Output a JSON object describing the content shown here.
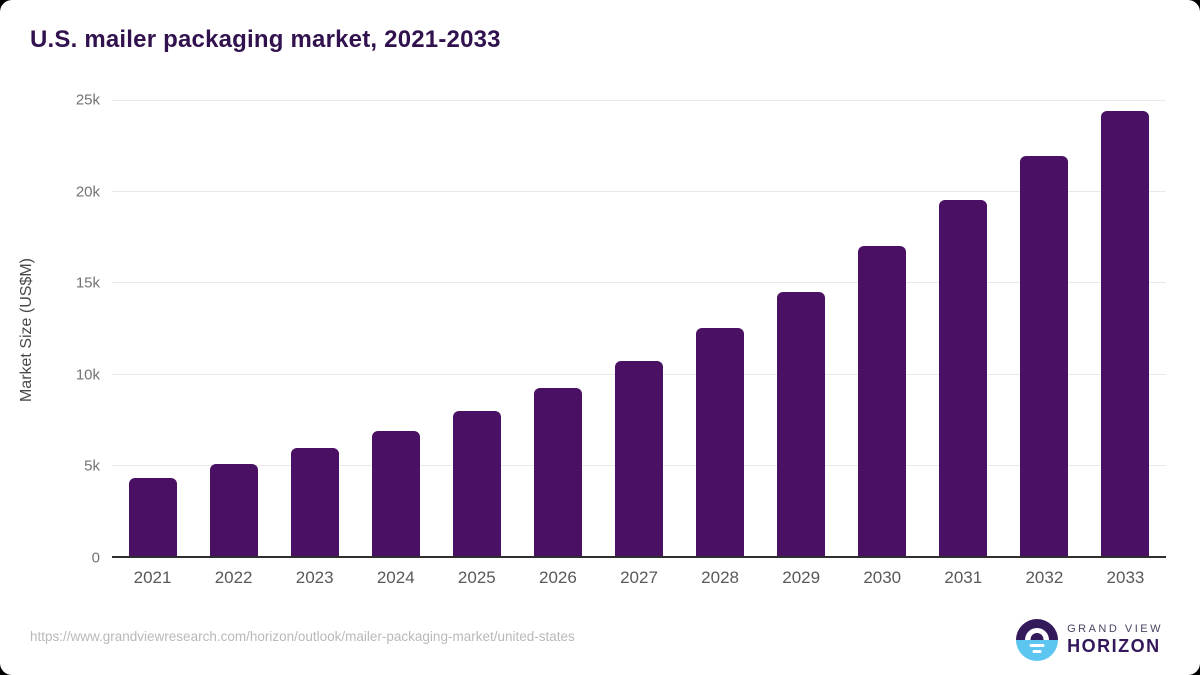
{
  "title": "U.S. mailer packaging market, 2021-2033",
  "chart_data": {
    "type": "bar",
    "title": "U.S. mailer packaging market, 2021-2033",
    "xlabel": "",
    "ylabel": "Market Size (US$M)",
    "categories": [
      "2021",
      "2022",
      "2023",
      "2024",
      "2025",
      "2026",
      "2027",
      "2028",
      "2029",
      "2030",
      "2031",
      "2032",
      "2033"
    ],
    "values": [
      4300,
      5050,
      5900,
      6850,
      7950,
      9200,
      10700,
      12500,
      14500,
      17000,
      19500,
      21950,
      24400
    ],
    "ylim": [
      0,
      25000
    ],
    "yticks": [
      {
        "label": "25k",
        "value": 25000
      },
      {
        "label": "20k",
        "value": 20000
      },
      {
        "label": "15k",
        "value": 15000
      },
      {
        "label": "10k",
        "value": 10000
      },
      {
        "label": "5k",
        "value": 5000
      },
      {
        "label": "0",
        "value": 0
      }
    ],
    "grid": true,
    "legend": false,
    "bar_color": "#4a1063"
  },
  "colors": {
    "title": "#31124e",
    "bar": "#4a1063",
    "gridline": "#e9e9e9",
    "axis_line": "#2f2f2f",
    "tick_label": "#737373",
    "x_label": "#595959",
    "footer_text": "#b9b9b9",
    "logo_purple": "#331a5b",
    "logo_blue": "#5cc6f0"
  },
  "footer": {
    "source_url": "https://www.grandviewresearch.com/horizon/outlook/mailer-packaging-market/united-states",
    "logo_line1": "GRAND VIEW",
    "logo_line2": "HORIZON"
  }
}
